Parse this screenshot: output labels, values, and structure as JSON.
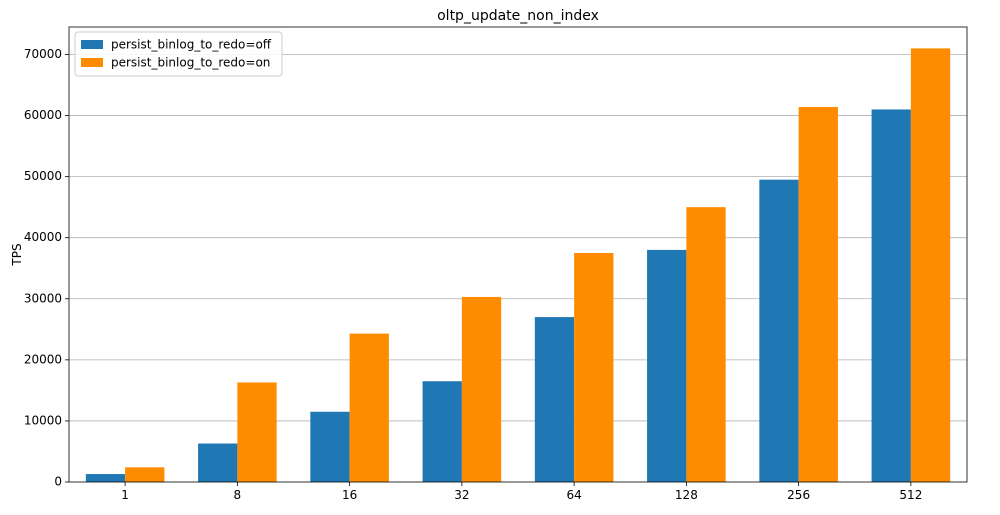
{
  "chart_data": {
    "type": "bar",
    "title": "oltp_update_non_index",
    "xlabel": "",
    "ylabel": "TPS",
    "categories": [
      "1",
      "8",
      "16",
      "32",
      "64",
      "128",
      "256",
      "512"
    ],
    "series": [
      {
        "name": "persist_binlog_to_redo=off",
        "color": "#1f77b4",
        "values": [
          1300,
          6300,
          11500,
          16500,
          27000,
          38000,
          49500,
          61000
        ]
      },
      {
        "name": "persist_binlog_to_redo=on",
        "color": "#ff8c00",
        "values": [
          2400,
          16300,
          24300,
          30300,
          37500,
          45000,
          61400,
          71000
        ]
      }
    ],
    "ylim": [
      0,
      74500
    ],
    "yticks": [
      0,
      10000,
      20000,
      30000,
      40000,
      50000,
      60000,
      70000
    ],
    "grid": true,
    "grid_axis": "y",
    "legend_position": "upper left"
  }
}
